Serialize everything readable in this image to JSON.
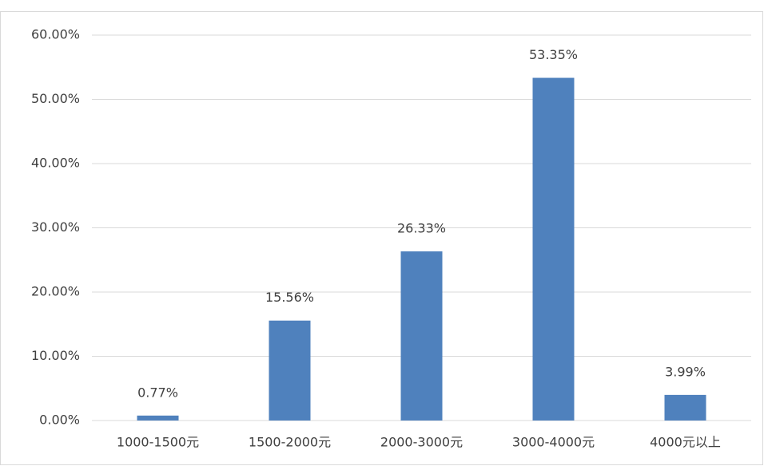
{
  "chart_data": {
    "type": "bar",
    "categories": [
      "1000-1500元",
      "1500-2000元",
      "2000-3000元",
      "3000-4000元",
      "4000元以上"
    ],
    "values": [
      0.77,
      15.56,
      26.33,
      53.35,
      3.99
    ],
    "value_labels": [
      "0.77%",
      "15.56%",
      "26.33%",
      "53.35%",
      "3.99%"
    ],
    "color": "#4f81bd",
    "ylim": [
      0,
      60
    ],
    "yticks": [
      {
        "value": 0,
        "label": "0.00%"
      },
      {
        "value": 10,
        "label": "10.00%"
      },
      {
        "value": 20,
        "label": "20.00%"
      },
      {
        "value": 30,
        "label": "30.00%"
      },
      {
        "value": 40,
        "label": "40.00%"
      },
      {
        "value": 50,
        "label": "50.00%"
      },
      {
        "value": 60,
        "label": "60.00%"
      }
    ],
    "grid": true
  }
}
